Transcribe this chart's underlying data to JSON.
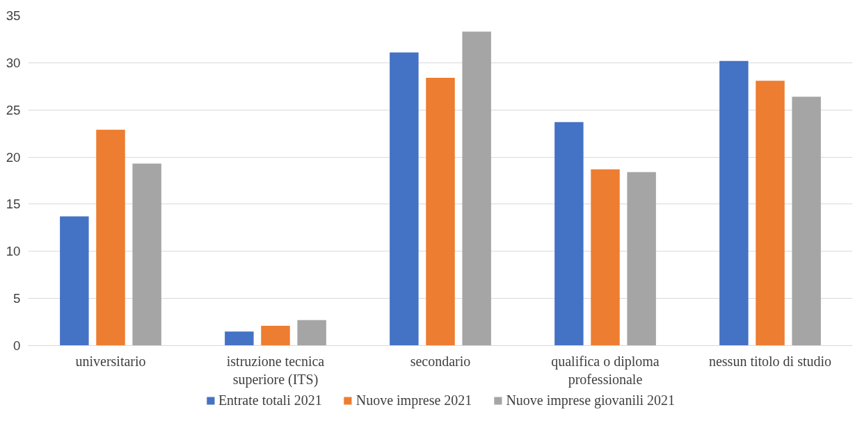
{
  "chart_data": {
    "type": "bar",
    "categories": [
      "universitario",
      "istruzione tecnica superiore (ITS)",
      "secondario",
      "qualifica o diploma professionale",
      "nessun titolo di studio"
    ],
    "series": [
      {
        "name": "Entrate totali 2021",
        "color": "#4472c4",
        "values": [
          13.7,
          1.5,
          31.1,
          23.7,
          30.2
        ]
      },
      {
        "name": "Nuove imprese 2021",
        "color": "#ed7d31",
        "values": [
          22.9,
          2.1,
          28.4,
          18.7,
          28.1
        ]
      },
      {
        "name": "Nuove imprese giovanili 2021",
        "color": "#a5a5a5",
        "values": [
          19.3,
          2.7,
          33.3,
          18.4,
          26.4
        ]
      }
    ],
    "ylim": [
      0,
      35
    ],
    "yticks": [
      0,
      5,
      10,
      15,
      20,
      25,
      30,
      35
    ],
    "grid": "y",
    "legend": "bottom"
  }
}
